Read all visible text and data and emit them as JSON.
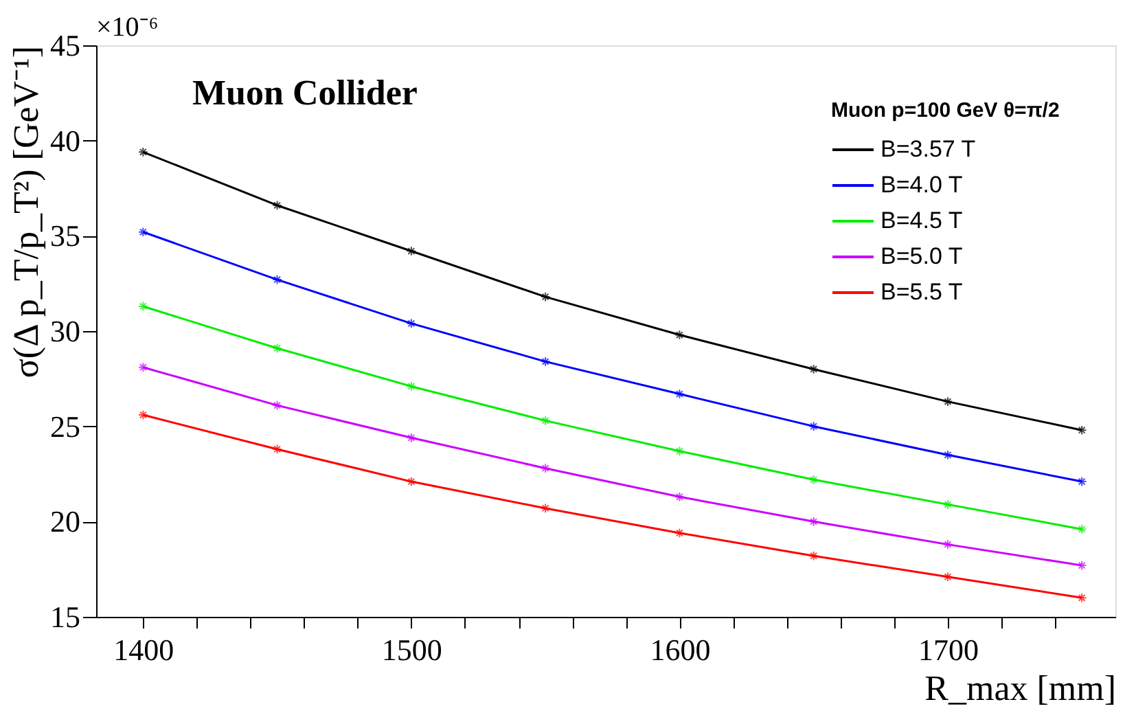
{
  "chart_data": {
    "type": "line",
    "title": "Muon Collider",
    "xlabel": "R_max [mm]",
    "ylabel": "σ(Δ p_T/p_T²) [GeV⁻¹]",
    "legend_title": "Muon p=100 GeV θ=π/2",
    "annotations": [
      "×10⁻⁶"
    ],
    "x": [
      1400,
      1450,
      1500,
      1550,
      1600,
      1650,
      1700,
      1750
    ],
    "series": [
      {
        "name": "B=3.57 T",
        "color": "#000000",
        "values": [
          39.4,
          36.6,
          34.2,
          31.8,
          29.8,
          28.0,
          26.3,
          24.8
        ]
      },
      {
        "name": "B=4.0 T",
        "color": "#0000ff",
        "values": [
          35.2,
          32.7,
          30.4,
          28.4,
          26.7,
          25.0,
          23.5,
          22.1
        ]
      },
      {
        "name": "B=4.5 T",
        "color": "#00ee00",
        "values": [
          31.3,
          29.1,
          27.1,
          25.3,
          23.7,
          22.2,
          20.9,
          19.6
        ]
      },
      {
        "name": "B=5.0 T",
        "color": "#cc00ff",
        "values": [
          28.1,
          26.1,
          24.4,
          22.8,
          21.3,
          20.0,
          18.8,
          17.7
        ]
      },
      {
        "name": "B=5.5 T",
        "color": "#ff0000",
        "values": [
          25.6,
          23.8,
          22.1,
          20.7,
          19.4,
          18.2,
          17.1,
          16.0
        ]
      }
    ],
    "xlim": [
      1382.5,
      1762.5
    ],
    "ylim": [
      15,
      45
    ],
    "xticks": [
      1400,
      {
        "value": 1420,
        "label": null
      },
      {
        "value": 1440,
        "label": null
      },
      {
        "value": 1460,
        "label": null
      },
      {
        "value": 1480,
        "label": null
      },
      1500,
      {
        "value": 1520,
        "label": null
      },
      {
        "value": 1540,
        "label": null
      },
      {
        "value": 1560,
        "label": null
      },
      {
        "value": 1580,
        "label": null
      },
      1600,
      {
        "value": 1620,
        "label": null
      },
      {
        "value": 1640,
        "label": null
      },
      {
        "value": 1660,
        "label": null
      },
      {
        "value": 1680,
        "label": null
      },
      1700,
      {
        "value": 1720,
        "label": null
      },
      {
        "value": 1740,
        "label": null
      }
    ],
    "yticks": [
      15,
      20,
      25,
      30,
      35,
      40,
      45
    ],
    "grid": false,
    "legend": "top right",
    "marker": "cross",
    "line_style": "solid"
  }
}
